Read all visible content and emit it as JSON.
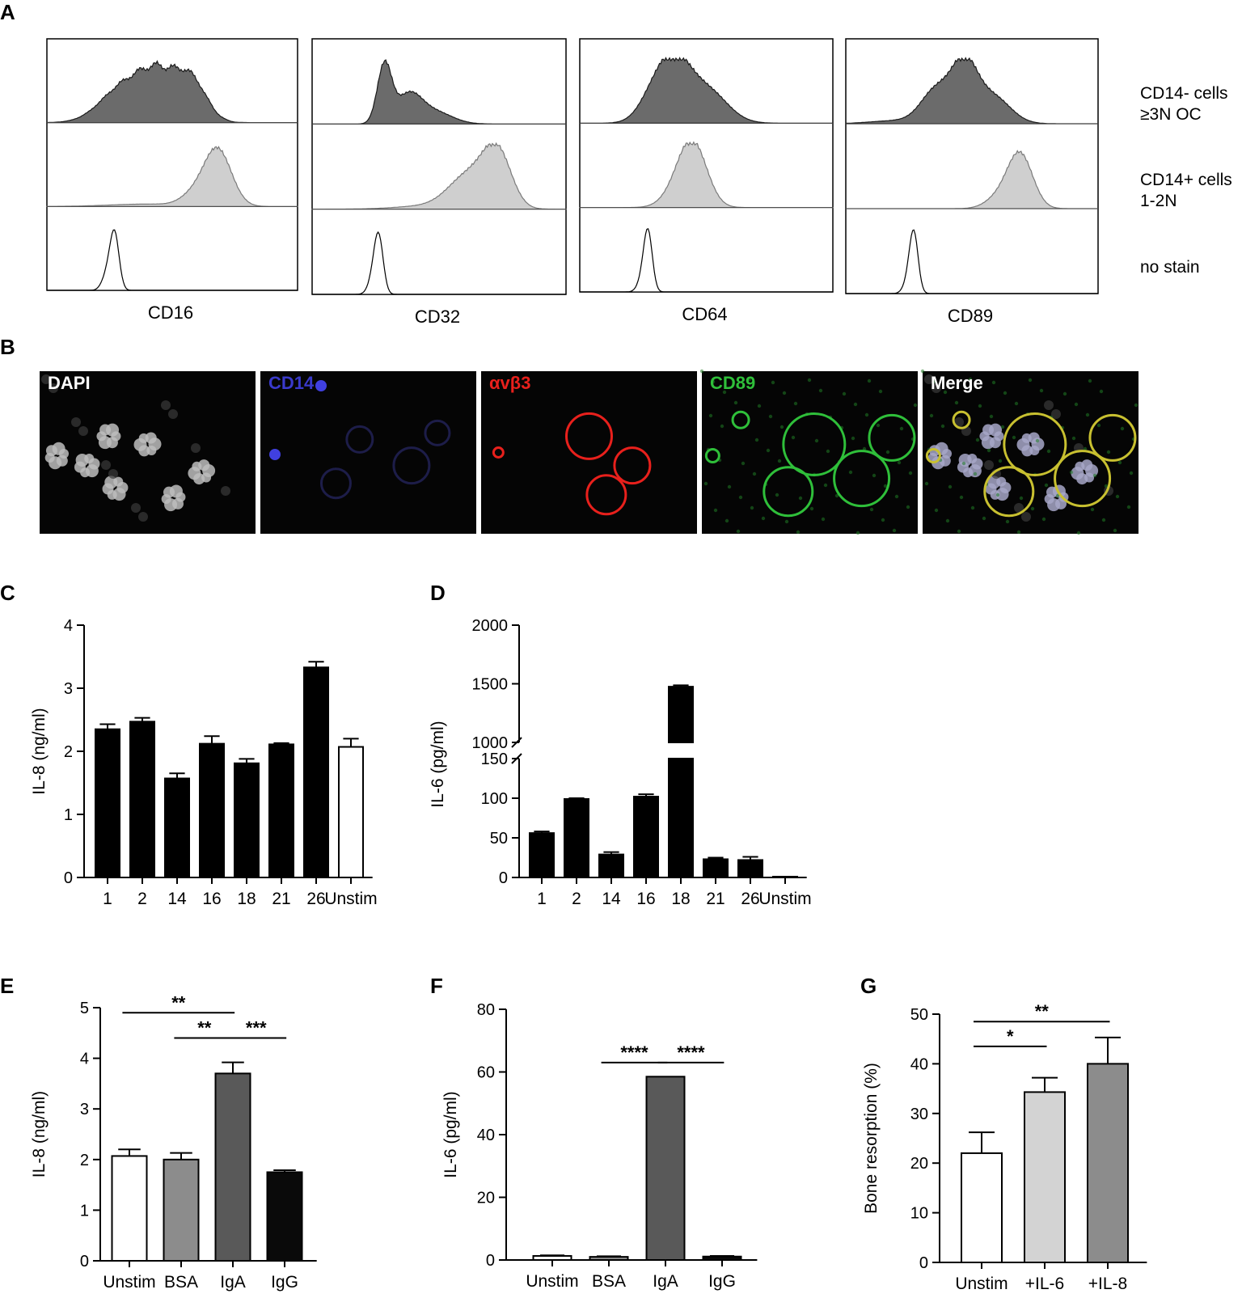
{
  "panel_letters": [
    "A",
    "B",
    "C",
    "D",
    "E",
    "F",
    "G"
  ],
  "panel_a": {
    "markers": [
      "CD16",
      "CD32",
      "CD64",
      "CD89"
    ],
    "row_labels": [
      {
        "line1": "CD14- cells",
        "line2": "≥3N OC"
      },
      {
        "line1": "CD14+ cells",
        "line2": "1-2N"
      },
      {
        "line1": "no stain",
        "line2": ""
      }
    ],
    "colors": {
      "oc": "#6b6b6b",
      "cd14pos": "#cfcfcf",
      "nostain": "#ffffff"
    },
    "histograms": [
      {
        "marker": "CD16",
        "oc_center": 0.45,
        "cd14pos_center": 0.68,
        "nostain_center": 0.27
      },
      {
        "marker": "CD32",
        "oc_center": 0.32,
        "cd14pos_center": 0.72,
        "nostain_center": 0.26
      },
      {
        "marker": "CD64",
        "oc_center": 0.38,
        "cd14pos_center": 0.45,
        "nostain_center": 0.27
      },
      {
        "marker": "CD89",
        "oc_center": 0.44,
        "cd14pos_center": 0.69,
        "nostain_center": 0.27
      }
    ]
  },
  "panel_b": {
    "channels": [
      {
        "label": "DAPI",
        "color": "#ffffff"
      },
      {
        "label": "CD14",
        "color": "#3a3acb"
      },
      {
        "label": "αvβ3",
        "color": "#e8201c"
      },
      {
        "label": "CD89",
        "color": "#2fbf3a"
      },
      {
        "label": "Merge",
        "color": "#ffffff"
      }
    ]
  },
  "chart_data": [
    {
      "panel": "C",
      "type": "bar",
      "ylabel": "IL-8 (ng/ml)",
      "categories": [
        "1",
        "2",
        "14",
        "16",
        "18",
        "21",
        "26",
        "Unstim"
      ],
      "values": [
        2.35,
        2.47,
        1.57,
        2.12,
        1.81,
        2.11,
        3.33,
        2.07
      ],
      "errors": [
        0.08,
        0.06,
        0.08,
        0.12,
        0.07,
        0.02,
        0.09,
        0.13
      ],
      "fills": [
        "#000000",
        "#000000",
        "#000000",
        "#000000",
        "#000000",
        "#000000",
        "#000000",
        "#ffffff"
      ],
      "yticks": [
        0,
        1,
        2,
        3,
        4
      ],
      "ylim": [
        0,
        4
      ]
    },
    {
      "panel": "D",
      "type": "bar",
      "ylabel": "IL-6 (pg/ml)",
      "categories": [
        "1",
        "2",
        "14",
        "16",
        "18",
        "21",
        "26",
        "Unstim"
      ],
      "values": [
        56,
        99,
        29,
        102,
        1475,
        23,
        22,
        1
      ],
      "errors": [
        2,
        1,
        3,
        3,
        12,
        2,
        4,
        0
      ],
      "fills": [
        "#000000",
        "#000000",
        "#000000",
        "#000000",
        "#000000",
        "#000000",
        "#000000",
        "#000000"
      ],
      "broken_axis": {
        "lower": [
          0,
          150
        ],
        "upper": [
          1000,
          2000
        ]
      },
      "yticks_lower": [
        0,
        50,
        100,
        150
      ],
      "yticks_upper": [
        1000,
        1500,
        2000
      ]
    },
    {
      "panel": "E",
      "type": "bar",
      "ylabel": "IL-8 (ng/ml)",
      "categories": [
        "Unstim",
        "BSA",
        "IgA",
        "IgG"
      ],
      "values": [
        2.07,
        2.0,
        3.7,
        1.75
      ],
      "errors": [
        0.13,
        0.13,
        0.22,
        0.04
      ],
      "fills": [
        "#ffffff",
        "#8c8c8c",
        "#595959",
        "#0a0a0a"
      ],
      "yticks": [
        0,
        1,
        2,
        3,
        4,
        5
      ],
      "ylim": [
        0,
        5
      ],
      "significance": [
        {
          "from": 0,
          "to": 2,
          "y": 4.9,
          "label": "**"
        },
        {
          "from": 1,
          "to": 2,
          "y": 4.4,
          "label": "**"
        },
        {
          "from": 2,
          "to": 3,
          "y": 4.4,
          "label": "***"
        }
      ]
    },
    {
      "panel": "F",
      "type": "bar",
      "ylabel": "IL-6 (pg/ml)",
      "categories": [
        "Unstim",
        "BSA",
        "IgA",
        "IgG"
      ],
      "values": [
        1.3,
        1.0,
        58.5,
        1.1
      ],
      "errors": [
        0.2,
        0.2,
        0,
        0.2
      ],
      "fills": [
        "#ffffff",
        "#8c8c8c",
        "#595959",
        "#0a0a0a"
      ],
      "yticks": [
        0,
        20,
        40,
        60,
        80
      ],
      "ylim": [
        0,
        80
      ],
      "significance": [
        {
          "from": 1,
          "to": 2,
          "y": 63,
          "label": "****"
        },
        {
          "from": 2,
          "to": 3,
          "y": 63,
          "label": "****"
        }
      ]
    },
    {
      "panel": "G",
      "type": "bar",
      "ylabel": "Bone resorption (%)",
      "categories": [
        "Unstim",
        "+IL-6",
        "+IL-8"
      ],
      "values": [
        22,
        34.3,
        40
      ],
      "errors": [
        4.2,
        2.9,
        5.3
      ],
      "fills": [
        "#ffffff",
        "#d3d3d3",
        "#8c8c8c"
      ],
      "yticks": [
        0,
        10,
        20,
        30,
        40,
        50
      ],
      "ylim": [
        0,
        50
      ],
      "significance": [
        {
          "from": 0,
          "to": 2,
          "y": 48.5,
          "label": "**"
        },
        {
          "from": 0,
          "to": 1,
          "y": 43.5,
          "label": "*"
        }
      ]
    }
  ]
}
